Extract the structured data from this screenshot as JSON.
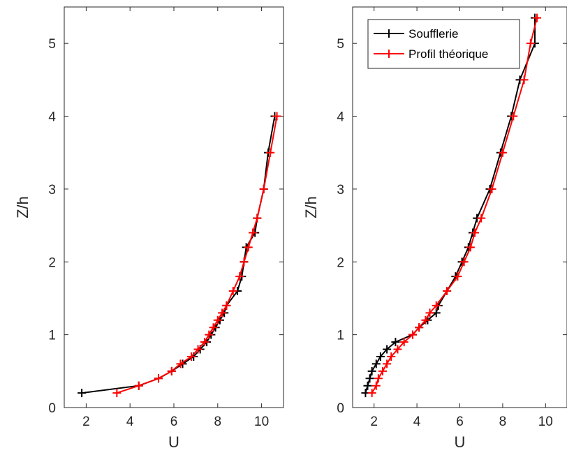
{
  "chart_data": [
    {
      "type": "line",
      "xlabel": "U",
      "ylabel": "Z/h",
      "xlim": [
        1,
        11
      ],
      "ylim": [
        0,
        5.5
      ],
      "xticks": [
        2,
        4,
        6,
        8,
        10
      ],
      "yticks": [
        0,
        1,
        2,
        3,
        4,
        5
      ],
      "grid": false,
      "series": [
        {
          "color": "#000000",
          "points": [
            [
              1.8,
              0.2
            ],
            [
              4.4,
              0.3
            ],
            [
              5.3,
              0.4
            ],
            [
              5.9,
              0.5
            ],
            [
              6.4,
              0.6
            ],
            [
              6.9,
              0.7
            ],
            [
              7.2,
              0.8
            ],
            [
              7.5,
              0.9
            ],
            [
              7.7,
              1.0
            ],
            [
              7.9,
              1.1
            ],
            [
              8.1,
              1.2
            ],
            [
              8.3,
              1.3
            ],
            [
              8.4,
              1.4
            ],
            [
              8.9,
              1.6
            ],
            [
              9.1,
              1.8
            ],
            [
              9.2,
              2.0
            ],
            [
              9.3,
              2.2
            ],
            [
              9.7,
              2.4
            ],
            [
              9.8,
              2.6
            ],
            [
              10.1,
              3.0
            ],
            [
              10.3,
              3.5
            ],
            [
              10.6,
              4.0
            ]
          ]
        },
        {
          "color": "#ff0000",
          "points": [
            [
              3.4,
              0.2
            ],
            [
              4.4,
              0.3
            ],
            [
              5.3,
              0.4
            ],
            [
              5.9,
              0.5
            ],
            [
              6.3,
              0.6
            ],
            [
              6.8,
              0.7
            ],
            [
              7.1,
              0.8
            ],
            [
              7.4,
              0.9
            ],
            [
              7.6,
              1.0
            ],
            [
              7.8,
              1.1
            ],
            [
              8.0,
              1.2
            ],
            [
              8.2,
              1.3
            ],
            [
              8.4,
              1.4
            ],
            [
              8.7,
              1.6
            ],
            [
              9.0,
              1.8
            ],
            [
              9.2,
              2.0
            ],
            [
              9.4,
              2.2
            ],
            [
              9.6,
              2.4
            ],
            [
              9.8,
              2.6
            ],
            [
              10.1,
              3.0
            ],
            [
              10.4,
              3.5
            ],
            [
              10.7,
              4.0
            ]
          ]
        }
      ]
    },
    {
      "type": "line",
      "xlabel": "U",
      "ylabel": "Z/h",
      "xlim": [
        1,
        11
      ],
      "ylim": [
        0,
        5.5
      ],
      "xticks": [
        2,
        4,
        6,
        8,
        10
      ],
      "yticks": [
        0,
        1,
        2,
        3,
        4,
        5
      ],
      "grid": false,
      "legend_position": "top-left",
      "series": [
        {
          "name": "Soufflerie",
          "color": "#000000",
          "points": [
            [
              1.6,
              0.2
            ],
            [
              1.7,
              0.3
            ],
            [
              1.8,
              0.4
            ],
            [
              1.9,
              0.5
            ],
            [
              2.1,
              0.6
            ],
            [
              2.3,
              0.7
            ],
            [
              2.6,
              0.8
            ],
            [
              3.0,
              0.9
            ],
            [
              3.8,
              1.0
            ],
            [
              4.1,
              1.1
            ],
            [
              4.5,
              1.2
            ],
            [
              4.9,
              1.3
            ],
            [
              5.0,
              1.4
            ],
            [
              5.4,
              1.6
            ],
            [
              5.8,
              1.8
            ],
            [
              6.1,
              2.0
            ],
            [
              6.4,
              2.2
            ],
            [
              6.6,
              2.4
            ],
            [
              6.8,
              2.6
            ],
            [
              7.4,
              3.0
            ],
            [
              7.9,
              3.5
            ],
            [
              8.4,
              4.0
            ],
            [
              8.8,
              4.5
            ],
            [
              9.5,
              5.0
            ],
            [
              9.5,
              5.35
            ]
          ]
        },
        {
          "name": "Profil théorique",
          "color": "#ff0000",
          "points": [
            [
              1.9,
              0.2
            ],
            [
              2.1,
              0.3
            ],
            [
              2.2,
              0.4
            ],
            [
              2.4,
              0.5
            ],
            [
              2.6,
              0.6
            ],
            [
              2.8,
              0.7
            ],
            [
              3.1,
              0.8
            ],
            [
              3.4,
              0.9
            ],
            [
              3.8,
              1.0
            ],
            [
              4.1,
              1.1
            ],
            [
              4.4,
              1.2
            ],
            [
              4.6,
              1.3
            ],
            [
              4.9,
              1.4
            ],
            [
              5.4,
              1.6
            ],
            [
              5.9,
              1.8
            ],
            [
              6.2,
              2.0
            ],
            [
              6.5,
              2.2
            ],
            [
              6.7,
              2.4
            ],
            [
              7.0,
              2.6
            ],
            [
              7.5,
              3.0
            ],
            [
              8.0,
              3.5
            ],
            [
              8.5,
              4.0
            ],
            [
              9.0,
              4.5
            ],
            [
              9.3,
              5.0
            ],
            [
              9.6,
              5.35
            ]
          ]
        }
      ]
    }
  ]
}
